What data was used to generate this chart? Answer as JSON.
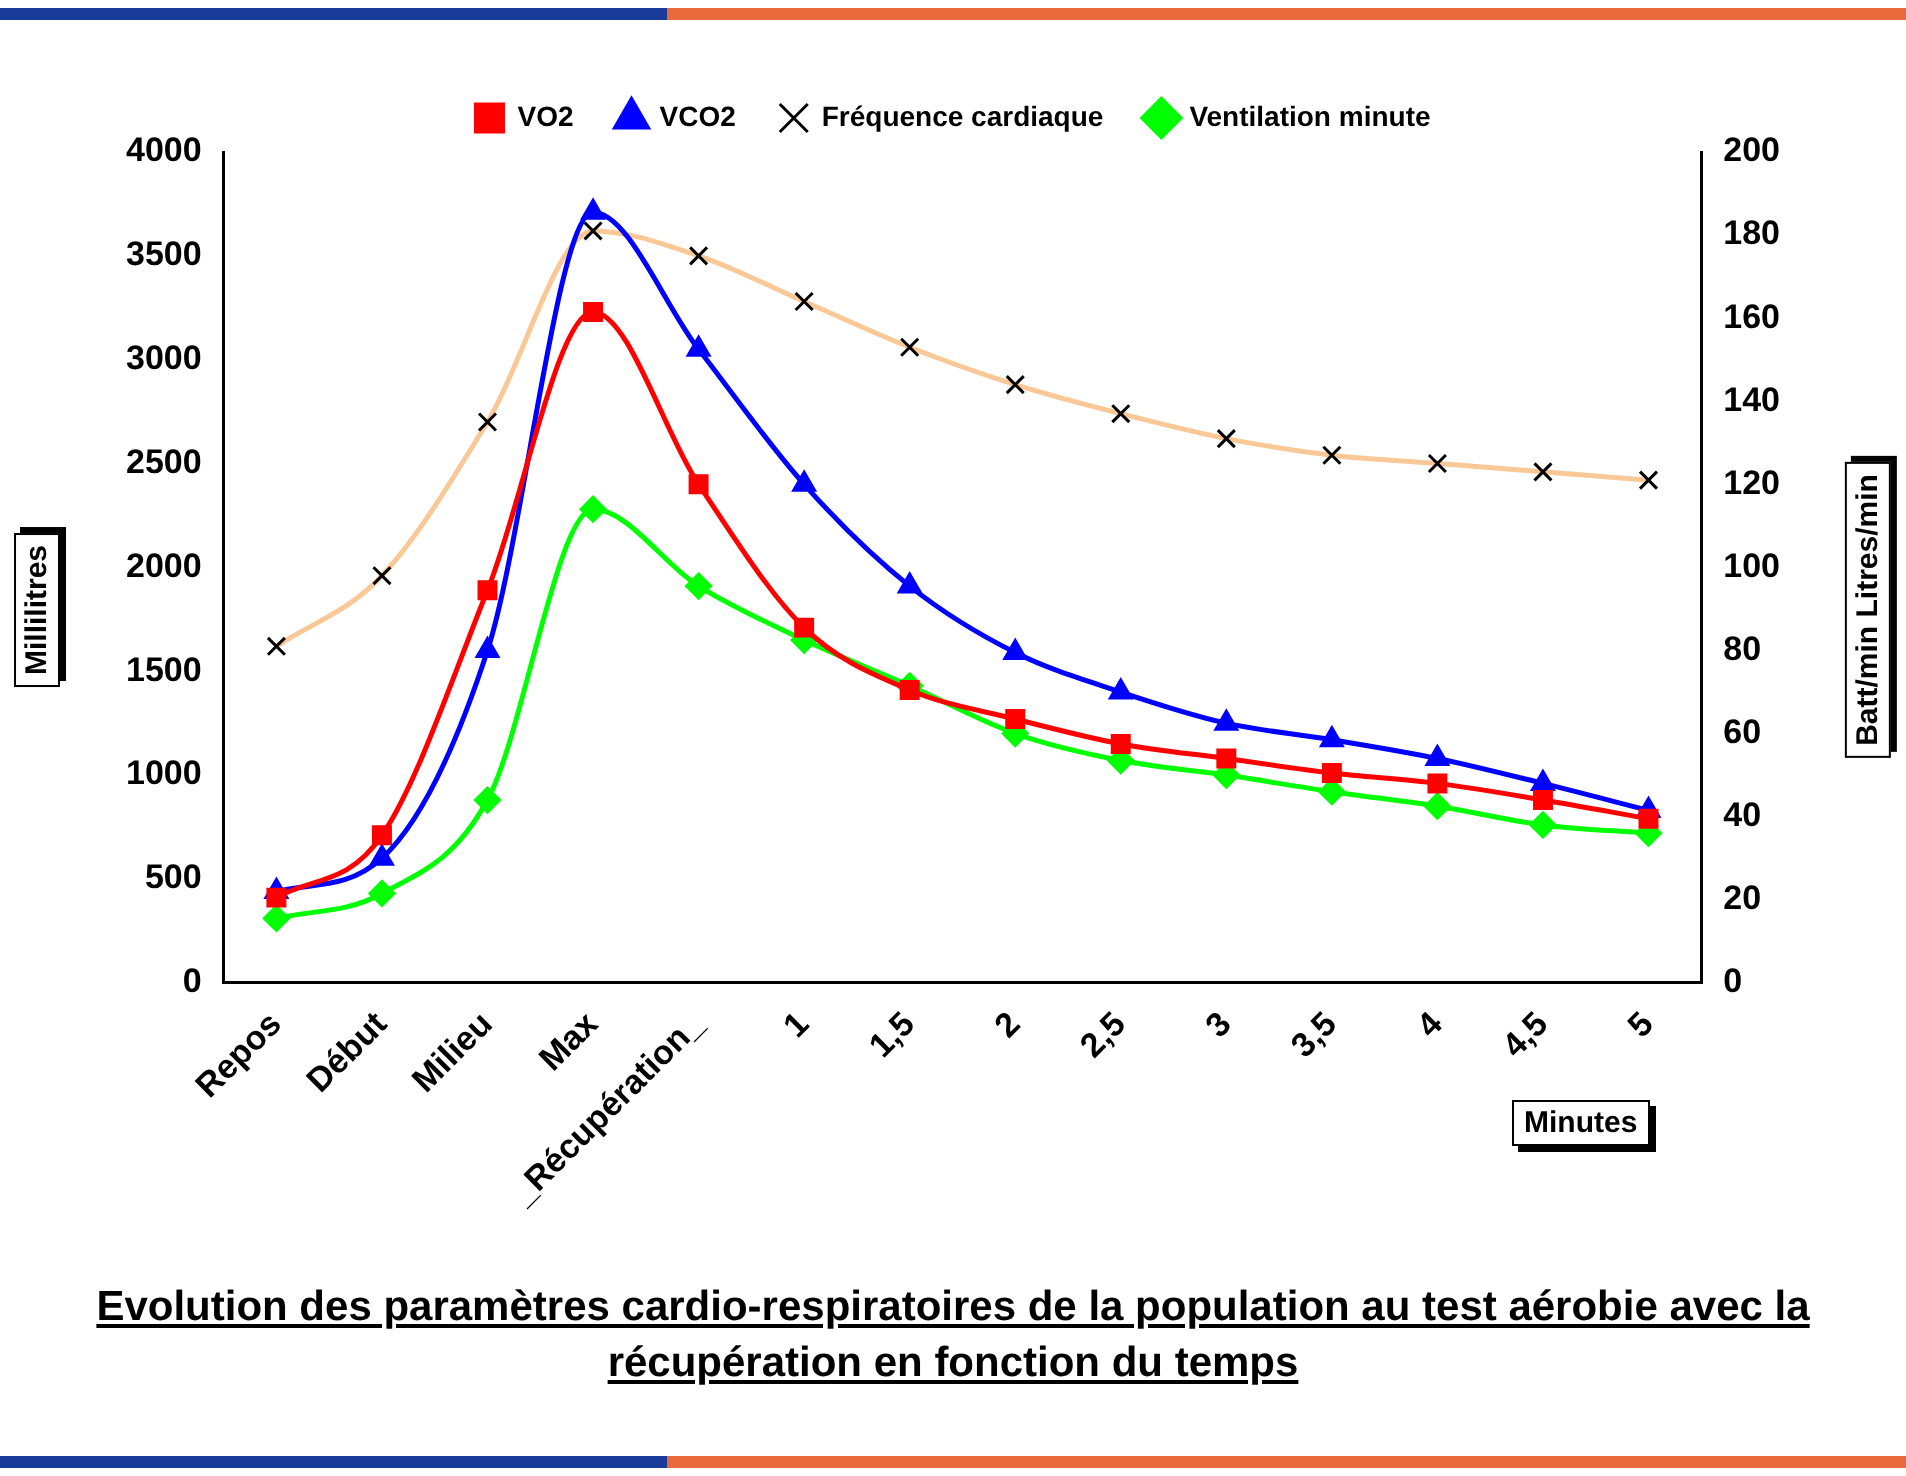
{
  "chart_data": {
    "type": "line",
    "title": "Evolution des paramètres cardio-respiratoires de la population au test aérobie avec la récupération en fonction du temps",
    "ylabel": "Millilitres",
    "y2label": "Batt/min Litres/min",
    "xlabel": "Minutes",
    "categories": [
      "Repos",
      "Début",
      "Milieu",
      "Max",
      "_Récupération_",
      "1",
      "1,5",
      "2",
      "2,5",
      "3",
      "3,5",
      "4",
      "4,5",
      "5"
    ],
    "ylim": [
      0,
      4000
    ],
    "yticks": [
      0,
      500,
      1000,
      1500,
      2000,
      2500,
      3000,
      3500,
      4000
    ],
    "y2lim": [
      0,
      200
    ],
    "y2ticks": [
      0,
      20,
      40,
      60,
      80,
      100,
      120,
      140,
      160,
      180,
      200
    ],
    "grid": false,
    "legend": "top",
    "series": [
      {
        "name": "VO2",
        "color": "#ff0000",
        "marker": "square",
        "values": [
          410,
          710,
          1890,
          3230,
          2400,
          1710,
          1410,
          1270,
          1150,
          1080,
          1010,
          960,
          880,
          790
        ]
      },
      {
        "name": "VCO2",
        "color": "#0000ff",
        "marker": "triangle",
        "values": [
          440,
          600,
          1600,
          3710,
          3050,
          2400,
          1910,
          1590,
          1400,
          1250,
          1170,
          1080,
          960,
          830
        ]
      },
      {
        "name": "Fréquence cardiaque",
        "color": "#fac896",
        "marker": "cross",
        "axis": "y2",
        "values": [
          81,
          98,
          135,
          181,
          175,
          164,
          153,
          144,
          137,
          131,
          127,
          125,
          123,
          121
        ]
      },
      {
        "name": "Ventilation minute",
        "color": "#00ff00",
        "marker": "diamond",
        "values": [
          310,
          430,
          880,
          2280,
          1910,
          1650,
          1430,
          1200,
          1070,
          1000,
          920,
          850,
          760,
          720
        ]
      }
    ]
  }
}
